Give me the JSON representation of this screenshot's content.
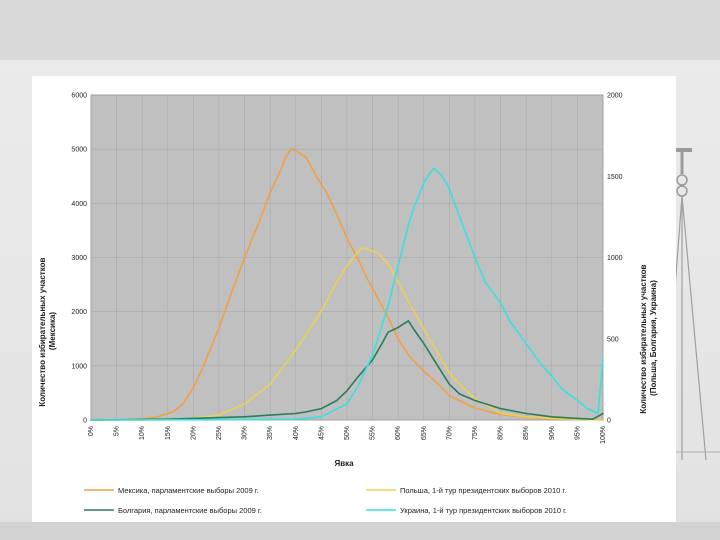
{
  "chart_data": {
    "type": "line",
    "xlabel": "Явка",
    "ylabel_left": "Количество избирательных участков (Мексика)",
    "ylabel_left_lines": [
      "Количество избирательных участков",
      "(Мексика)"
    ],
    "ylabel_right": "Количество избирательных участков (Польша, Болгария, Украина)",
    "ylabel_right_lines": [
      "Количество избирательных участков",
      "(Польша, Болгария, Украина)"
    ],
    "ylim_left": [
      0,
      6000
    ],
    "yticks_left": [
      0,
      1000,
      2000,
      3000,
      4000,
      5000,
      6000
    ],
    "ylim_right": [
      0,
      2000
    ],
    "yticks_right": [
      0,
      500,
      1000,
      1500,
      2000
    ],
    "xlim": [
      0,
      100
    ],
    "xticks": [
      "0%",
      "5%",
      "10%",
      "15%",
      "20%",
      "25%",
      "30%",
      "35%",
      "40%",
      "45%",
      "50%",
      "55%",
      "60%",
      "65%",
      "70%",
      "75%",
      "80%",
      "85%",
      "90%",
      "95%",
      "100%"
    ],
    "grid": true,
    "plot_background": "#c0c0c0",
    "legend_position": "bottom",
    "series": [
      {
        "name": "Мексика, парламентские выборы 2009 г.",
        "axis": "left",
        "color": "#f0a040",
        "x": [
          0,
          5,
          10,
          13,
          16,
          18,
          20,
          22,
          25,
          28,
          30,
          33,
          35,
          37,
          38,
          39,
          40,
          42,
          44,
          46,
          48,
          50,
          52,
          54,
          56,
          58,
          60,
          62,
          65,
          68,
          70,
          75,
          80,
          85,
          90,
          95,
          98,
          100
        ],
        "y": [
          0,
          0,
          20,
          60,
          150,
          300,
          600,
          1000,
          1700,
          2500,
          3000,
          3700,
          4200,
          4600,
          4850,
          5000,
          4980,
          4850,
          4500,
          4200,
          3800,
          3350,
          3000,
          2600,
          2250,
          1900,
          1500,
          1200,
          900,
          650,
          450,
          220,
          100,
          50,
          20,
          10,
          5,
          0
        ]
      },
      {
        "name": "Польша, 1-й тур президентских выборов 2010 г.",
        "axis": "right",
        "color": "#eed050",
        "x": [
          0,
          10,
          15,
          20,
          25,
          30,
          35,
          40,
          45,
          48,
          50,
          52,
          53,
          54,
          55,
          56,
          58,
          60,
          62,
          65,
          68,
          70,
          72,
          75,
          78,
          80,
          85,
          90,
          95,
          98,
          100
        ],
        "y": [
          0,
          0,
          5,
          10,
          30,
          100,
          220,
          430,
          670,
          850,
          950,
          1030,
          1060,
          1050,
          1040,
          1030,
          960,
          850,
          730,
          560,
          400,
          290,
          220,
          130,
          80,
          40,
          20,
          10,
          5,
          2,
          0
        ]
      },
      {
        "name": "Болгария, парламентские выборы 2009 г.",
        "axis": "right",
        "color": "#2a7d58",
        "x": [
          0,
          15,
          20,
          25,
          30,
          35,
          40,
          42,
          45,
          48,
          50,
          52,
          55,
          57,
          58,
          60,
          61,
          62,
          63,
          65,
          67,
          70,
          72,
          75,
          78,
          80,
          85,
          90,
          95,
          98,
          100
        ],
        "y": [
          0,
          5,
          10,
          15,
          20,
          30,
          40,
          50,
          70,
          120,
          180,
          260,
          370,
          480,
          540,
          570,
          590,
          610,
          560,
          470,
          370,
          220,
          160,
          120,
          90,
          70,
          40,
          20,
          10,
          5,
          40
        ]
      },
      {
        "name": "Украина, 1-й тур президентских выборов 2010 г.",
        "axis": "right",
        "color": "#38e0e0",
        "x": [
          0,
          30,
          40,
          45,
          50,
          52,
          55,
          58,
          60,
          62,
          63,
          64,
          65,
          66,
          67,
          68,
          69,
          70,
          72,
          75,
          77,
          80,
          82,
          85,
          88,
          90,
          92,
          95,
          97,
          99,
          100
        ],
        "y": [
          0,
          2,
          5,
          20,
          100,
          200,
          400,
          700,
          950,
          1200,
          1300,
          1380,
          1460,
          1510,
          1550,
          1520,
          1480,
          1420,
          1250,
          1000,
          850,
          720,
          600,
          470,
          340,
          270,
          190,
          120,
          70,
          40,
          370
        ]
      }
    ]
  }
}
